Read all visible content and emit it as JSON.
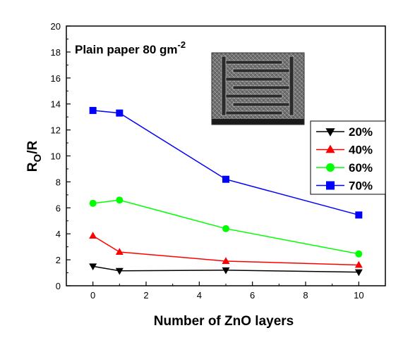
{
  "chart_data": {
    "type": "line",
    "xlabel": "Number of ZnO layers",
    "ylabel": {
      "main": "R",
      "sub": "O",
      "suffix": "/R"
    },
    "xlim": [
      -1,
      11
    ],
    "ylim": [
      0,
      20
    ],
    "x_ticks": [
      0,
      2,
      4,
      6,
      8,
      10
    ],
    "y_ticks": [
      0,
      2,
      4,
      6,
      8,
      10,
      12,
      14,
      16,
      18,
      20
    ],
    "annotation": {
      "text": "Plain paper 80 gm",
      "sup": "-2"
    },
    "inset": "SEM micrograph of interdigitated electrode",
    "legend_position": "right",
    "grid": false,
    "series": [
      {
        "name": "20%",
        "color": "#000000",
        "marker": "triangle-down",
        "x": [
          0,
          1,
          5,
          10
        ],
        "y": [
          1.5,
          1.15,
          1.2,
          1.05
        ]
      },
      {
        "name": "40%",
        "color": "#ff0000",
        "marker": "triangle-up",
        "x": [
          0,
          1,
          5,
          10
        ],
        "y": [
          3.85,
          2.6,
          1.9,
          1.6
        ]
      },
      {
        "name": "60%",
        "color": "#00ff00",
        "marker": "circle",
        "x": [
          0,
          1,
          5,
          10
        ],
        "y": [
          6.35,
          6.6,
          4.4,
          2.45
        ]
      },
      {
        "name": "70%",
        "color": "#0000ff",
        "marker": "square",
        "x": [
          0,
          1,
          5,
          10
        ],
        "y": [
          13.5,
          13.3,
          8.2,
          5.45
        ]
      }
    ]
  }
}
